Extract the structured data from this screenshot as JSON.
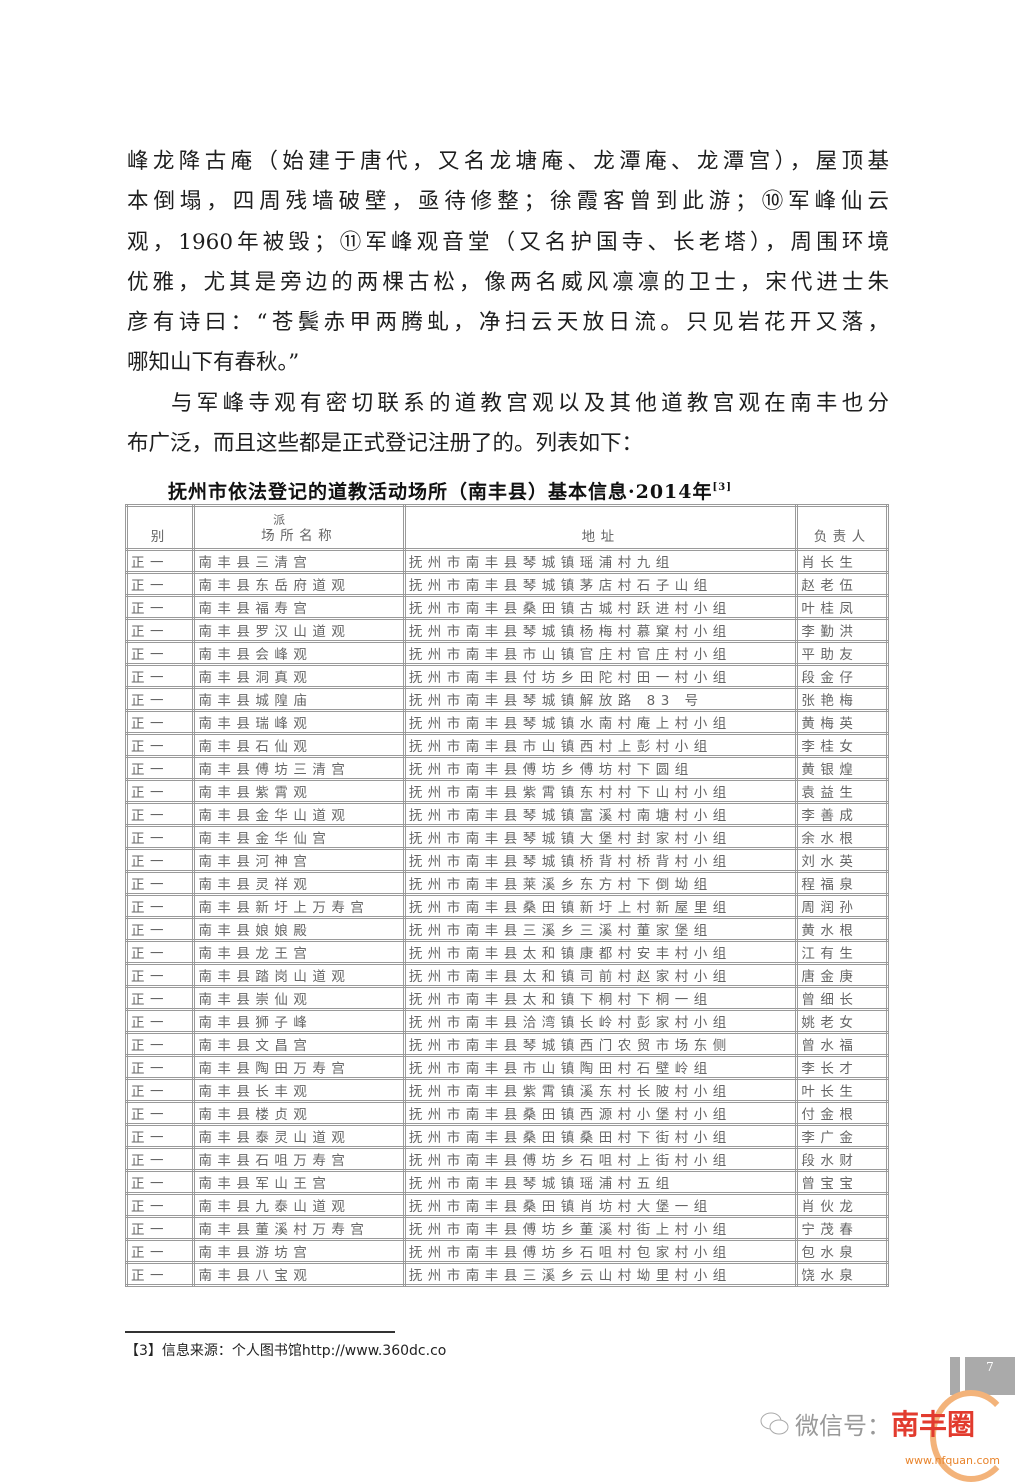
{
  "body": {
    "paragraph1_lines": [
      "峰龙降古庵（始建于唐代，又名龙塘庵、龙潭庵、龙潭宫），屋顶基",
      "本倒塌，四周残墙破壁，亟待修整；徐霞客曾到此游；⑩军峰仙云",
      "观，1960年被毁；⑪军峰观音堂（又名护国寺、长老塔），周围环境",
      "优雅，尤其是旁边的两棵古松，像两名威风凛凛的卫士，宋代进士朱",
      "彦有诗曰：“苍鬓赤甲两腾虬，净扫云天放日流。只见岩花开又落，",
      "哪知山下有春秋。”"
    ],
    "paragraph2_lines": [
      "与军峰寺观有密切联系的道教宫观以及其他道教宫观在南丰也分",
      "布广泛，而且这些都是正式登记注册了的。列表如下："
    ]
  },
  "table": {
    "title": "抚州市依法登记的道教活动场所（南丰县）基本信息·2014年",
    "title_ref": "[3]",
    "header_fragment": "派",
    "headers": [
      "别",
      "场所名称",
      "地址",
      "负责人"
    ],
    "rows": [
      [
        "正一",
        "南丰县三清宫",
        "抚州市南丰县琴城镇瑶浦村九组",
        "肖长生"
      ],
      [
        "正一",
        "南丰县东岳府道观",
        "抚州市南丰县琴城镇茅店村石子山组",
        "赵老伍"
      ],
      [
        "正一",
        "南丰县福寿宫",
        "抚州市南丰县桑田镇古城村跃进村小组",
        "叶桂凤"
      ],
      [
        "正一",
        "南丰县罗汉山道观",
        "抚州市南丰县琴城镇杨梅村慕窠村小组",
        "李勤洪"
      ],
      [
        "正一",
        "南丰县会峰观",
        "抚州市南丰县市山镇官庄村官庄村小组",
        "平助友"
      ],
      [
        "正一",
        "南丰县洞真观",
        "抚州市南丰县付坊乡田陀村田一村小组",
        "段金仔"
      ],
      [
        "正一",
        "南丰县城隍庙",
        "抚州市南丰县琴城镇解放路 83 号",
        "张艳梅"
      ],
      [
        "正一",
        "南丰县瑞峰观",
        "抚州市南丰县琴城镇水南村庵上村小组",
        "黄梅英"
      ],
      [
        "正一",
        "南丰县石仙观",
        "抚州市南丰县市山镇西村上彭村小组",
        "李桂女"
      ],
      [
        "正一",
        "南丰县傅坊三清宫",
        "抚州市南丰县傅坊乡傅坊村下圆组",
        "黄银煌"
      ],
      [
        "正一",
        "南丰县紫霄观",
        "抚州市南丰县紫霄镇东村村下山村小组",
        "袁益生"
      ],
      [
        "正一",
        "南丰县金华山道观",
        "抚州市南丰县琴城镇富溪村南塘村小组",
        "李善成"
      ],
      [
        "正一",
        "南丰县金华仙宫",
        "抚州市南丰县琴城镇大堡村封家村小组",
        "余水根"
      ],
      [
        "正一",
        "南丰县河神宫",
        "抚州市南丰县琴城镇桥背村桥背村小组",
        "刘水英"
      ],
      [
        "正一",
        "南丰县灵祥观",
        "抚州市南丰县莱溪乡东方村下倒坳组",
        "程福泉"
      ],
      [
        "正一",
        "南丰县新圩上万寿宫",
        "抚州市南丰县桑田镇新圩上村新屋里组",
        "周润孙"
      ],
      [
        "正一",
        "南丰县娘娘殿",
        "抚州市南丰县三溪乡三溪村董家堡组",
        "黄水根"
      ],
      [
        "正一",
        "南丰县龙王宫",
        "抚州市南丰县太和镇康都村安丰村小组",
        "江有生"
      ],
      [
        "正一",
        "南丰县踏岗山道观",
        "抚州市南丰县太和镇司前村赵家村小组",
        "唐金庚"
      ],
      [
        "正一",
        "南丰县崇仙观",
        "抚州市南丰县太和镇下桐村下桐一组",
        "曾细长"
      ],
      [
        "正一",
        "南丰县狮子峰",
        "抚州市南丰县洽湾镇长岭村彭家村小组",
        "姚老女"
      ],
      [
        "正一",
        "南丰县文昌宫",
        "抚州市南丰县琴城镇西门农贸市场东侧",
        "曾水福"
      ],
      [
        "正一",
        "南丰县陶田万寿宫",
        "抚州市南丰县市山镇陶田村石壁岭组",
        "李长才"
      ],
      [
        "正一",
        "南丰县长丰观",
        "抚州市南丰县紫霄镇溪东村长陂村小组",
        "叶长生"
      ],
      [
        "正一",
        "南丰县楼贞观",
        "抚州市南丰县桑田镇西源村小堡村小组",
        "付金根"
      ],
      [
        "正一",
        "南丰县泰灵山道观",
        "抚州市南丰县桑田镇桑田村下街村小组",
        "李广金"
      ],
      [
        "正一",
        "南丰县石咀万寿宫",
        "抚州市南丰县傅坊乡石咀村上街村小组",
        "段水财"
      ],
      [
        "正一",
        "南丰县军山王宫",
        "抚州市南丰县琴城镇瑶浦村五组",
        "曾宝宝"
      ],
      [
        "正一",
        "南丰县九泰山道观",
        "抚州市南丰县桑田镇肖坊村大堡一组",
        "肖伙龙"
      ],
      [
        "正一",
        "南丰县董溪村万寿宫",
        "抚州市南丰县傅坊乡董溪村街上村小组",
        "宁茂春"
      ],
      [
        "正一",
        "南丰县游坊宫",
        "抚州市南丰县傅坊乡石咀村包家村小组",
        "包水泉"
      ],
      [
        "正一",
        "南丰县八宝观",
        "抚州市南丰县三溪乡云山村坳里村小组",
        "饶水泉"
      ]
    ]
  },
  "footnote": "【3】信息来源：个人图书馆http://www.360dc.co",
  "page_number": "7",
  "watermark": {
    "prefix": "微信号：",
    "brand": "南丰圈",
    "url": "www.nfquan.com",
    "icon": "wechat-icon"
  }
}
